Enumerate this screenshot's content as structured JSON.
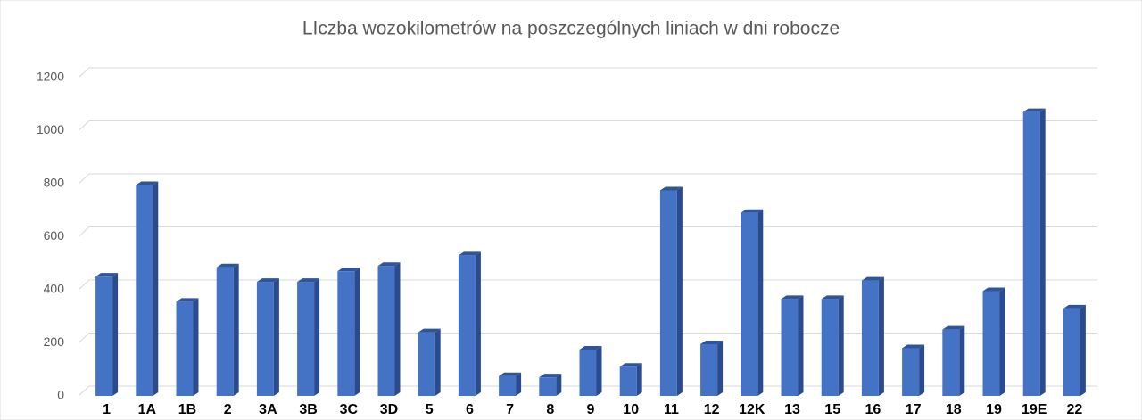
{
  "chart_data": {
    "type": "bar",
    "title": "LIczba wozokilometrów na poszczególnych liniach w dni robocze",
    "categories": [
      "1",
      "1A",
      "1B",
      "2",
      "3A",
      "3B",
      "3C",
      "3D",
      "5",
      "6",
      "7",
      "8",
      "9",
      "10",
      "11",
      "12",
      "12K",
      "13",
      "15",
      "16",
      "17",
      "18",
      "19",
      "19E",
      "22"
    ],
    "values": [
      450,
      795,
      355,
      485,
      430,
      430,
      470,
      490,
      240,
      530,
      75,
      70,
      175,
      110,
      775,
      195,
      690,
      365,
      365,
      435,
      180,
      250,
      395,
      1070,
      330
    ],
    "color": "#4472c4",
    "ylim": [
      0,
      1200
    ],
    "yticks": [
      0,
      200,
      400,
      600,
      800,
      1000,
      1200
    ],
    "grid": true
  }
}
